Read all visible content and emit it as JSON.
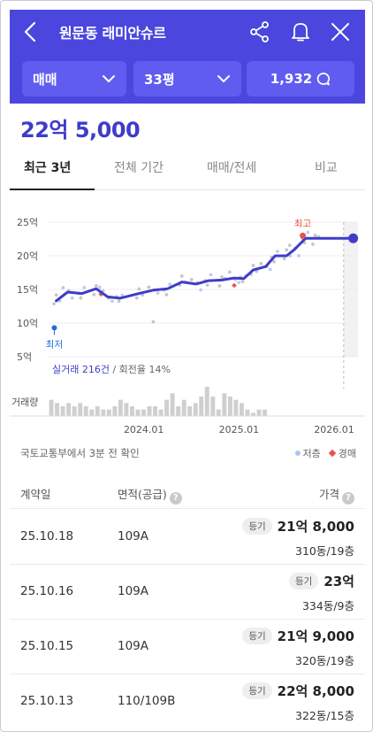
{
  "header": {
    "title": "원문동 래미안슈르",
    "filters": {
      "trade_type": "매매",
      "size": "33평",
      "comments": "1,932"
    }
  },
  "price": "22억 5,000",
  "tabs": [
    {
      "label": "최근 3년"
    },
    {
      "label": "전체 기간"
    },
    {
      "label": "매매/전세"
    },
    {
      "label": "비교"
    }
  ],
  "chart_data": {
    "type": "line",
    "y_ticks": [
      "25억",
      "20억",
      "15억",
      "10억",
      "5억"
    ],
    "x_ticks": [
      "2024.01",
      "2025.01",
      "2026.01"
    ],
    "ylim": [
      5,
      25
    ],
    "x_range": [
      2023.0,
      2026.25
    ],
    "series": [
      {
        "values_x": [
          2023.08,
          2023.2,
          2023.35,
          2023.5,
          2023.62,
          2023.75,
          2023.95,
          2024.1,
          2024.25,
          2024.4,
          2024.55,
          2024.68,
          2024.82,
          2024.95,
          2025.05,
          2025.15,
          2025.28,
          2025.38,
          2025.5,
          2025.58,
          2025.7,
          2025.8,
          2025.9,
          2026.05,
          2026.2
        ],
        "values": [
          13.3,
          14.6,
          14.4,
          15.1,
          13.9,
          13.7,
          14.4,
          14.9,
          15.1,
          16.1,
          15.8,
          16.3,
          16.4,
          16.7,
          16.6,
          17.9,
          18.4,
          20.0,
          20.0,
          20.9,
          22.6,
          22.6,
          22.6,
          22.6,
          22.6
        ]
      }
    ],
    "max_point": {
      "label": "최고",
      "x": 2025.67,
      "y": 23.0
    },
    "min_point": {
      "label": "최저",
      "x": 2023.06,
      "y": 9.3
    },
    "annotation_stats": "실거래 216건",
    "annotation_extra": "/ 회전율 14%",
    "volume_label": "거래량",
    "volume": [
      5,
      4,
      3,
      4,
      3,
      4,
      3,
      2,
      3,
      2,
      2,
      3,
      5,
      4,
      3,
      2,
      2,
      3,
      3,
      2,
      5,
      7,
      3,
      5,
      3,
      4,
      6,
      9,
      6,
      2,
      7,
      6,
      5,
      4,
      2,
      1,
      2,
      2
    ]
  },
  "source": {
    "text": "국토교통부에서 3분 전 확인",
    "legend_low": "저층",
    "legend_auction": "경매"
  },
  "table": {
    "headers": {
      "date": "계약일",
      "area": "면적(공급)",
      "price": "가격"
    },
    "rows": [
      {
        "date": "25.10.18",
        "area": "109A",
        "badge": "등기",
        "price": "21억 8,000",
        "unit": "310동/19층"
      },
      {
        "date": "25.10.16",
        "area": "109A",
        "badge": "등기",
        "price": "23억",
        "unit": "334동/9층"
      },
      {
        "date": "25.10.15",
        "area": "109A",
        "badge": "등기",
        "price": "21억 9,000",
        "unit": "320동/19층"
      },
      {
        "date": "25.10.13",
        "area": "110/109B",
        "badge": "등기",
        "price": "22억 8,000",
        "unit": "322동/15층"
      }
    ]
  },
  "colors": {
    "brand": "#4b46dd",
    "line": "#3f3cc9",
    "max": "#e8554e",
    "min": "#1d6fe0"
  }
}
